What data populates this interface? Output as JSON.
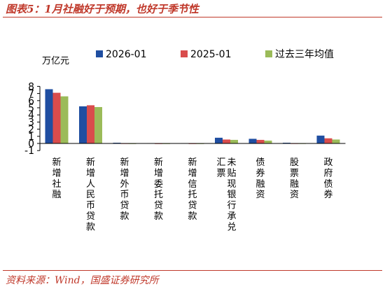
{
  "header": {
    "title": "图表5：1月社融好于预期，也好于季节性"
  },
  "footer": {
    "source": "资料来源：Wind，国盛证券研究所"
  },
  "colors": {
    "accent": "#c0392b",
    "series": [
      "#1f4ea1",
      "#d94c4c",
      "#9bbb59"
    ]
  },
  "chart_data": {
    "type": "bar",
    "title": "图表5：1月社融好于预期，也好于季节性",
    "ylabel": "万亿元",
    "xlabel": "",
    "ylim": [
      -1,
      8
    ],
    "yticks": [
      -1,
      0,
      1,
      2,
      3,
      4,
      5,
      6,
      7,
      8
    ],
    "legend_position": "top",
    "grid": false,
    "categories": [
      "新增社融",
      "新增人民币贷款",
      "新增外币贷款",
      "新增委托贷款",
      "新增信托贷款",
      "未贴现银行承兑汇票",
      "债券融资",
      "股票融资",
      "政府债券"
    ],
    "series": [
      {
        "name": "2026-01",
        "values": [
          7.6,
          5.2,
          0.1,
          0.05,
          0.05,
          0.8,
          0.65,
          0.1,
          1.1
        ]
      },
      {
        "name": "2025-01",
        "values": [
          7.1,
          5.35,
          0.03,
          0.02,
          0.02,
          0.55,
          0.5,
          0.03,
          0.72
        ]
      },
      {
        "name": "过去三年均值",
        "values": [
          6.6,
          5.1,
          0.02,
          0.02,
          0.02,
          0.5,
          0.4,
          0.03,
          0.55
        ]
      }
    ]
  }
}
